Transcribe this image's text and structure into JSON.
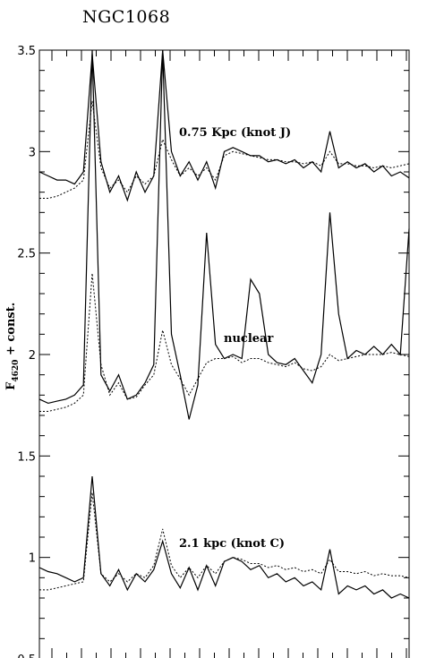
{
  "chart_data": {
    "type": "line",
    "title": "NGC1068",
    "ylabel_main": "F",
    "ylabel_sub": "4620",
    "ylabel_rest": " + const.",
    "ylim": [
      0.5,
      3.5
    ],
    "yticks": [
      "0.5",
      "1",
      "1.5",
      "2",
      "2.5",
      "3",
      "3.5"
    ],
    "annotations": [
      "0.75 Kpc (knot J)",
      "nuclear",
      "2.1 kpc (knot C)"
    ],
    "line_styles": [
      "solid",
      "dotted"
    ],
    "series_groups": [
      {
        "annotation": "0.75 Kpc (knot J)",
        "solid": [
          2.9,
          2.88,
          2.86,
          2.86,
          2.84,
          2.9,
          3.48,
          2.95,
          2.8,
          2.88,
          2.76,
          2.9,
          2.8,
          2.88,
          3.5,
          3.0,
          2.88,
          2.95,
          2.86,
          2.95,
          2.82,
          3.0,
          3.02,
          3.0,
          2.98,
          2.98,
          2.95,
          2.96,
          2.94,
          2.96,
          2.92,
          2.95,
          2.9,
          3.1,
          2.92,
          2.95,
          2.92,
          2.94,
          2.9,
          2.93,
          2.88,
          2.9,
          2.87
        ],
        "dotted": [
          2.77,
          2.77,
          2.78,
          2.8,
          2.82,
          2.86,
          3.25,
          2.92,
          2.82,
          2.86,
          2.8,
          2.88,
          2.84,
          2.88,
          3.06,
          2.96,
          2.88,
          2.92,
          2.88,
          2.92,
          2.86,
          2.98,
          3.0,
          2.99,
          2.98,
          2.97,
          2.96,
          2.96,
          2.95,
          2.95,
          2.94,
          2.95,
          2.93,
          3.0,
          2.94,
          2.94,
          2.93,
          2.93,
          2.92,
          2.93,
          2.92,
          2.93,
          2.94
        ]
      },
      {
        "annotation": "nuclear",
        "solid": [
          1.78,
          1.76,
          1.77,
          1.78,
          1.8,
          1.85,
          3.5,
          1.9,
          1.82,
          1.9,
          1.78,
          1.8,
          1.86,
          1.95,
          3.5,
          2.1,
          1.9,
          1.68,
          1.85,
          2.6,
          2.05,
          1.98,
          2.0,
          1.98,
          2.37,
          2.3,
          2.0,
          1.96,
          1.95,
          1.98,
          1.92,
          1.86,
          2.0,
          2.7,
          2.2,
          1.98,
          2.02,
          2.0,
          2.04,
          2.0,
          2.05,
          2.0,
          2.62
        ],
        "dotted": [
          1.72,
          1.72,
          1.73,
          1.74,
          1.76,
          1.8,
          2.4,
          1.95,
          1.8,
          1.86,
          1.78,
          1.79,
          1.85,
          1.9,
          2.12,
          1.95,
          1.88,
          1.8,
          1.88,
          1.96,
          1.98,
          1.98,
          1.99,
          1.96,
          1.98,
          1.98,
          1.96,
          1.95,
          1.94,
          1.96,
          1.93,
          1.92,
          1.94,
          2.0,
          1.97,
          1.98,
          1.99,
          2.0,
          2.0,
          2.0,
          2.01,
          2.0,
          1.99
        ]
      },
      {
        "annotation": "2.1 kpc (knot C)",
        "solid": [
          0.95,
          0.93,
          0.92,
          0.9,
          0.88,
          0.9,
          1.4,
          0.92,
          0.86,
          0.94,
          0.84,
          0.92,
          0.88,
          0.94,
          1.08,
          0.92,
          0.85,
          0.95,
          0.84,
          0.96,
          0.86,
          0.98,
          1.0,
          0.98,
          0.94,
          0.96,
          0.9,
          0.92,
          0.88,
          0.9,
          0.86,
          0.88,
          0.84,
          1.04,
          0.82,
          0.86,
          0.84,
          0.86,
          0.82,
          0.84,
          0.8,
          0.82,
          0.8
        ],
        "dotted": [
          0.84,
          0.84,
          0.85,
          0.86,
          0.87,
          0.88,
          1.32,
          0.92,
          0.88,
          0.92,
          0.88,
          0.92,
          0.9,
          0.96,
          1.14,
          0.96,
          0.9,
          0.95,
          0.9,
          0.96,
          0.92,
          0.98,
          1.0,
          0.99,
          0.97,
          0.97,
          0.95,
          0.96,
          0.94,
          0.95,
          0.93,
          0.94,
          0.92,
          0.99,
          0.93,
          0.93,
          0.92,
          0.93,
          0.91,
          0.92,
          0.91,
          0.91,
          0.9
        ]
      }
    ]
  }
}
